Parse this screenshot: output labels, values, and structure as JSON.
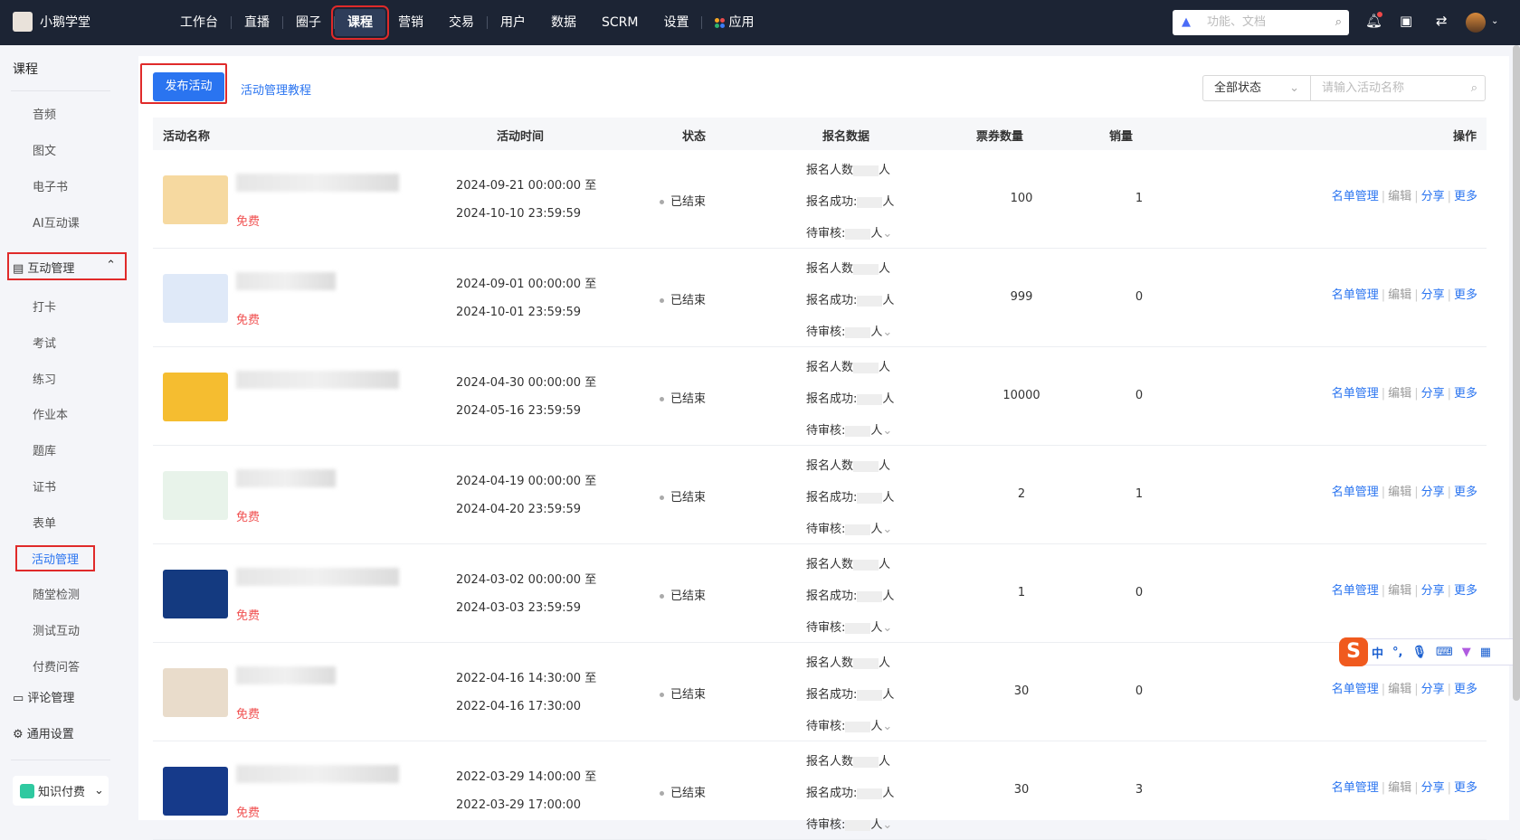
{
  "app": {
    "name": "小鹅学堂"
  },
  "nav": [
    "工作台",
    "直播",
    "圈子",
    "课程",
    "营销",
    "交易",
    "用户",
    "数据",
    "SCRM",
    "设置",
    "应用"
  ],
  "nav_active": "课程",
  "global_search": {
    "placeholder": "功能、文档"
  },
  "sidebar": {
    "title": "课程",
    "items": [
      "音频",
      "图文",
      "电子书",
      "AI互动课"
    ],
    "group": "互动管理",
    "sub": [
      "打卡",
      "考试",
      "练习",
      "作业本",
      "题库",
      "证书",
      "表单",
      "活动管理",
      "随堂检测",
      "测试互动",
      "付费问答"
    ],
    "active": "活动管理",
    "bottom": [
      "评论管理",
      "通用设置"
    ],
    "switcher": "知识付费"
  },
  "toolbar": {
    "publish": "发布活动",
    "tutorial": "活动管理教程",
    "status_select": "全部状态",
    "search_placeholder": "请输入活动名称"
  },
  "table": {
    "headers": [
      "活动名称",
      "活动时间",
      "状态",
      "报名数据",
      "票券数量",
      "销量",
      "操作"
    ],
    "data_labels": [
      "报名人数",
      "报名成功:",
      "待审核:",
      "人"
    ],
    "ops": [
      "名单管理",
      "编辑",
      "分享",
      "更多"
    ],
    "rows": [
      {
        "price": "免费",
        "start": "2024-09-21 00:00:00 至",
        "end": "2024-10-10 23:59:59",
        "status": "已结束",
        "tickets": "100",
        "sales": "1",
        "thumb": "#f6d9a0"
      },
      {
        "price": "免费",
        "start": "2024-09-01 00:00:00 至",
        "end": "2024-10-01 23:59:59",
        "status": "已结束",
        "tickets": "999",
        "sales": "0",
        "thumb": "#dfe9f8"
      },
      {
        "price": "",
        "start": "2024-04-30 00:00:00 至",
        "end": "2024-05-16 23:59:59",
        "status": "已结束",
        "tickets": "10000",
        "sales": "0",
        "thumb": "#f5bd30"
      },
      {
        "price": "免费",
        "start": "2024-04-19 00:00:00 至",
        "end": "2024-04-20 23:59:59",
        "status": "已结束",
        "tickets": "2",
        "sales": "1",
        "thumb": "#e8f3ea"
      },
      {
        "price": "免费",
        "start": "2024-03-02 00:00:00 至",
        "end": "2024-03-03 23:59:59",
        "status": "已结束",
        "tickets": "1",
        "sales": "0",
        "thumb": "#143a80"
      },
      {
        "price": "免费",
        "start": "2022-04-16 14:30:00 至",
        "end": "2022-04-16 17:30:00",
        "status": "已结束",
        "tickets": "30",
        "sales": "0",
        "thumb": "#e9dccb"
      },
      {
        "price": "免费",
        "start": "2022-03-29 14:00:00 至",
        "end": "2022-03-29 17:00:00",
        "status": "已结束",
        "tickets": "30",
        "sales": "3",
        "thumb": "#163a8a"
      }
    ]
  },
  "ime": {
    "lang": "中"
  },
  "colors": {
    "topbar": "#1c2434",
    "primary": "#2a74f0",
    "free": "#f05050",
    "highlight": "#e02a2a"
  }
}
